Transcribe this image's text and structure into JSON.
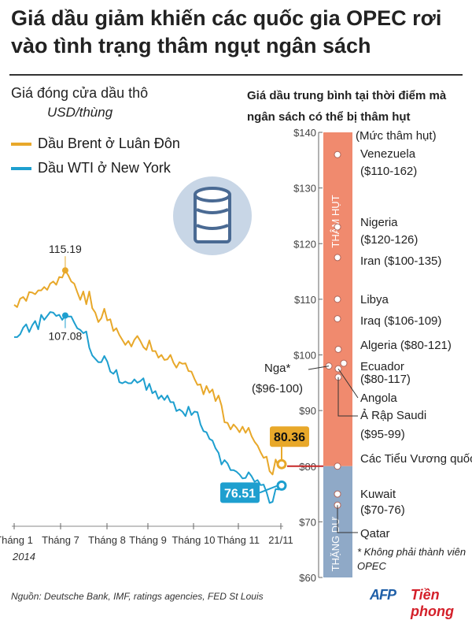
{
  "header": {
    "title": "Giá dầu giảm khiến các quốc gia OPEC rơi vào tình trạng thâm ngụt ngân sách"
  },
  "colors": {
    "brent": "#e8a82a",
    "wti": "#1e9fcf",
    "deficit_band": "#f08a6e",
    "surplus_band": "#8fa9c7",
    "barrel": "#4a6a93",
    "barrel_bg": "#c8d6e6",
    "threshold": "#c62828"
  },
  "icons": [
    "oil-barrel-icon"
  ],
  "left_panel": {
    "title": "Giá đóng cửa dầu thô",
    "unit": "USD/thùng",
    "year": "2014"
  },
  "right_panel": {
    "title_line1": "Giá dầu trung bình tại thời điểm mà",
    "title_line2": "ngân sách có thể bị thâm hụt",
    "deficit_label": "THÂM HỤT",
    "surplus_label": "THẶNG DƯ",
    "note": "* Không phải thành viên OPEC"
  },
  "source": "Nguồn: Deutsche Bank, IMF, ratings agencies, FED St Louis",
  "logos": {
    "afp": "AFP",
    "tienphong": "Tiền phong"
  },
  "chart_data": [
    {
      "type": "line",
      "title": "Giá đóng cửa dầu thô",
      "ylabel": "USD/thùng",
      "xlabel": "",
      "x_ticks": [
        "Tháng 1",
        "Tháng 7",
        "Tháng 8",
        "Tháng 9",
        "Tháng 10",
        "Tháng 11",
        "21/11"
      ],
      "ylim": [
        60,
        140
      ],
      "grid": false,
      "legend": "top-left",
      "series": [
        {
          "name": "Dầu Brent ở Luân Đôn",
          "values": [
            [
              0,
              109
            ],
            [
              2,
              108.6
            ],
            [
              4,
              110.1
            ],
            [
              6,
              110.4
            ],
            [
              8,
              109.7
            ],
            [
              10,
              111.3
            ],
            [
              12,
              111.2
            ],
            [
              14,
              110.9
            ],
            [
              16,
              111.6
            ],
            [
              18,
              111.6
            ],
            [
              20,
              112.2
            ],
            [
              22,
              111.7
            ],
            [
              24,
              112.8
            ],
            [
              26,
              113.2
            ],
            [
              28,
              112.6
            ],
            [
              30,
              114.0
            ],
            [
              32,
              113.9
            ],
            [
              34,
              115.19
            ],
            [
              36,
              114.3
            ],
            [
              38,
              113.2
            ],
            [
              40,
              112.8
            ],
            [
              42,
              111.3
            ],
            [
              44,
              109.9
            ],
            [
              46,
              111.4
            ],
            [
              48,
              109.1
            ],
            [
              50,
              111.4
            ],
            [
              52,
              108.4
            ],
            [
              54,
              107.6
            ],
            [
              56,
              105.9
            ],
            [
              58,
              106.6
            ],
            [
              60,
              108.3
            ],
            [
              62,
              106.2
            ],
            [
              64,
              106.4
            ],
            [
              66,
              104.3
            ],
            [
              68,
              104.8
            ],
            [
              70,
              103.6
            ],
            [
              72,
              102.7
            ],
            [
              74,
              101.8
            ],
            [
              76,
              102.5
            ],
            [
              78,
              101.5
            ],
            [
              80,
              102.7
            ],
            [
              82,
              103.4
            ],
            [
              84,
              102.5
            ],
            [
              86,
              101.4
            ],
            [
              88,
              100.9
            ],
            [
              90,
              102.6
            ],
            [
              92,
              100.7
            ],
            [
              94,
              100.7
            ],
            [
              96,
              99.5
            ],
            [
              98,
              100.0
            ],
            [
              100,
              99.1
            ],
            [
              102,
              99.2
            ],
            [
              104,
              100.0
            ],
            [
              106,
              98.6
            ],
            [
              108,
              97.7
            ],
            [
              110,
              98.7
            ],
            [
              112,
              98.4
            ],
            [
              114,
              98.5
            ],
            [
              116,
              97.1
            ],
            [
              118,
              97.0
            ],
            [
              120,
              95.7
            ],
            [
              122,
              94.6
            ],
            [
              124,
              94.7
            ],
            [
              126,
              92.9
            ],
            [
              128,
              94.4
            ],
            [
              130,
              93.2
            ],
            [
              132,
              93.8
            ],
            [
              134,
              91.7
            ],
            [
              136,
              92.7
            ],
            [
              138,
              90.9
            ],
            [
              140,
              87.9
            ],
            [
              142,
              87.8
            ],
            [
              144,
              86.6
            ],
            [
              146,
              87.5
            ],
            [
              148,
              86.9
            ],
            [
              150,
              86.1
            ],
            [
              152,
              87.1
            ],
            [
              154,
              86.0
            ],
            [
              156,
              86.9
            ],
            [
              158,
              85.4
            ],
            [
              160,
              84.4
            ],
            [
              162,
              83.7
            ],
            [
              164,
              82.5
            ],
            [
              166,
              81.5
            ],
            [
              168,
              81.7
            ],
            [
              170,
              79.1
            ],
            [
              172,
              78.5
            ],
            [
              174,
              81.2
            ],
            [
              176,
              79.9
            ],
            [
              178,
              80.36
            ]
          ]
        },
        {
          "name": "Dầu WTI ở New York",
          "values": [
            [
              0,
              103.2
            ],
            [
              2,
              103.2
            ],
            [
              4,
              103.7
            ],
            [
              6,
              104.9
            ],
            [
              8,
              105.5
            ],
            [
              10,
              104.1
            ],
            [
              12,
              105.3
            ],
            [
              14,
              106.1
            ],
            [
              16,
              104.6
            ],
            [
              18,
              107.2
            ],
            [
              20,
              106.3
            ],
            [
              22,
              107.0
            ],
            [
              24,
              107.7
            ],
            [
              26,
              107.6
            ],
            [
              28,
              107.0
            ],
            [
              30,
              107.2
            ],
            [
              32,
              106.3
            ],
            [
              34,
              107.08
            ],
            [
              36,
              106.9
            ],
            [
              38,
              106.9
            ],
            [
              40,
              105.8
            ],
            [
              42,
              104.8
            ],
            [
              44,
              104.5
            ],
            [
              46,
              103.9
            ],
            [
              48,
              104.2
            ],
            [
              50,
              101.3
            ],
            [
              52,
              99.9
            ],
            [
              54,
              99.3
            ],
            [
              56,
              98.7
            ],
            [
              58,
              98.7
            ],
            [
              60,
              99.8
            ],
            [
              62,
              98.8
            ],
            [
              64,
              97.0
            ],
            [
              66,
              96.6
            ],
            [
              68,
              97.3
            ],
            [
              70,
              95.1
            ],
            [
              72,
              94.9
            ],
            [
              74,
              95.2
            ],
            [
              76,
              94.9
            ],
            [
              78,
              94.9
            ],
            [
              80,
              95.6
            ],
            [
              82,
              95.0
            ],
            [
              84,
              95.3
            ],
            [
              86,
              95.8
            ],
            [
              88,
              93.7
            ],
            [
              90,
              94.8
            ],
            [
              92,
              93.1
            ],
            [
              94,
              93.5
            ],
            [
              96,
              92.1
            ],
            [
              98,
              92.7
            ],
            [
              100,
              91.9
            ],
            [
              102,
              92.7
            ],
            [
              104,
              91.5
            ],
            [
              106,
              91.5
            ],
            [
              108,
              89.9
            ],
            [
              110,
              90.2
            ],
            [
              112,
              89.8
            ],
            [
              114,
              89.0
            ],
            [
              116,
              90.7
            ],
            [
              118,
              89.2
            ],
            [
              120,
              89.8
            ],
            [
              122,
              89.7
            ],
            [
              124,
              87.5
            ],
            [
              126,
              86.3
            ],
            [
              128,
              86.1
            ],
            [
              130,
              84.9
            ],
            [
              132,
              84.6
            ],
            [
              134,
              83.2
            ],
            [
              136,
              82.4
            ],
            [
              138,
              80.3
            ],
            [
              140,
              81.1
            ],
            [
              142,
              80.5
            ],
            [
              144,
              79.3
            ],
            [
              146,
              79.3
            ],
            [
              148,
              79.0
            ],
            [
              150,
              78.5
            ],
            [
              152,
              77.8
            ],
            [
              154,
              77.9
            ],
            [
              156,
              78.9
            ],
            [
              158,
              78.2
            ],
            [
              160,
              77.2
            ],
            [
              162,
              77.5
            ],
            [
              164,
              76.6
            ],
            [
              166,
              76.7
            ],
            [
              168,
              75.3
            ],
            [
              170,
              73.4
            ],
            [
              172,
              73.6
            ],
            [
              174,
              75.9
            ],
            [
              176,
              75.8
            ],
            [
              178,
              76.51
            ]
          ]
        }
      ],
      "annotations": [
        {
          "series": "Dầu Brent ở Luân Đôn",
          "label": "115.19",
          "x": 34,
          "y": 115.19
        },
        {
          "series": "Dầu WTI ở New York",
          "label": "107.08",
          "x": 34,
          "y": 107.08
        },
        {
          "series": "Dầu Brent ở Luân Đôn",
          "label": "80.36",
          "x": 178,
          "y": 80.36
        },
        {
          "series": "Dầu WTI ở New York",
          "label": "76.51",
          "x": 178,
          "y": 76.51
        }
      ]
    },
    {
      "type": "scatter",
      "title": "Giá dầu trung bình tại thời điểm mà ngân sách có thể bị thâm hụt",
      "ylabel": "",
      "y_ticks": [
        "$60",
        "$70",
        "$80",
        "$90",
        "$100",
        "$110",
        "$120",
        "$130",
        "$140"
      ],
      "ylim": [
        60,
        140
      ],
      "threshold": 80,
      "legend_header": "(Mức thâm hụt)",
      "points": [
        {
          "label": "Venezuela",
          "range": "($110-162)",
          "y": 136
        },
        {
          "label": "Nigeria",
          "range": "($120-126)",
          "y": 123
        },
        {
          "label": "Iran ($100-135)",
          "range": "",
          "y": 117.5
        },
        {
          "label": "Libya",
          "range": "",
          "y": 110
        },
        {
          "label": "Iraq ($106-109)",
          "range": "",
          "y": 106.5
        },
        {
          "label": "Algeria ($80-121)",
          "range": "",
          "y": 101
        },
        {
          "label": "Ecuador",
          "range": "($80-117)",
          "y": 98.5
        },
        {
          "label": "Angola",
          "range": "",
          "y": 97.5
        },
        {
          "label": "Ả Rập Saudi",
          "range": "($95-99)",
          "y": 96
        },
        {
          "label": "Nga",
          "range": "($96-100)",
          "y": 98,
          "note": "*"
        },
        {
          "label": "Các Tiểu Vương quốc Ả Rập Thống nhất",
          "range": "",
          "y": 80
        },
        {
          "label": "Kuwait",
          "range": "($70-76)",
          "y": 75
        },
        {
          "label": "Qatar",
          "range": "",
          "y": 73
        }
      ]
    }
  ]
}
